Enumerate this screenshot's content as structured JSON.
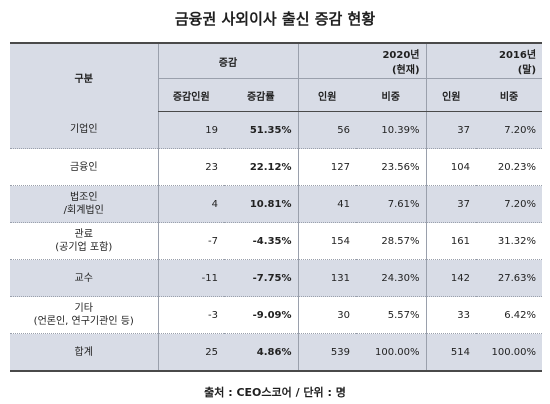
{
  "title": "금융권 사외이사 출신 증감 현황",
  "header": {
    "category": "구분",
    "change_group": "증감",
    "year2020_line1": "2020년",
    "year2020_line2": "(현재)",
    "year2016_line1": "2016년",
    "year2016_line2": "(말)",
    "change_count": "증감인원",
    "change_rate": "증감률",
    "count_2020": "인원",
    "share_2020": "비중",
    "count_2016": "인원",
    "share_2016": "비중"
  },
  "rows": [
    {
      "label1": "기업인",
      "label2": "",
      "change_count": "19",
      "change_rate": "51.35%",
      "count_2020": "56",
      "share_2020": "10.39%",
      "count_2016": "37",
      "share_2016": "7.20%"
    },
    {
      "label1": "금융인",
      "label2": "",
      "change_count": "23",
      "change_rate": "22.12%",
      "count_2020": "127",
      "share_2020": "23.56%",
      "count_2016": "104",
      "share_2016": "20.23%"
    },
    {
      "label1": "법조인",
      "label2": "/회계법인",
      "change_count": "4",
      "change_rate": "10.81%",
      "count_2020": "41",
      "share_2020": "7.61%",
      "count_2016": "37",
      "share_2016": "7.20%"
    },
    {
      "label1": "관료",
      "label2": "(공기업 포함)",
      "change_count": "-7",
      "change_rate": "-4.35%",
      "count_2020": "154",
      "share_2020": "28.57%",
      "count_2016": "161",
      "share_2016": "31.32%"
    },
    {
      "label1": "교수",
      "label2": "",
      "change_count": "-11",
      "change_rate": "-7.75%",
      "count_2020": "131",
      "share_2020": "24.30%",
      "count_2016": "142",
      "share_2016": "27.63%"
    },
    {
      "label1": "기타",
      "label2": "(언론인, 연구기관인 등)",
      "change_count": "-3",
      "change_rate": "-9.09%",
      "count_2020": "30",
      "share_2020": "5.57%",
      "count_2016": "33",
      "share_2016": "6.42%"
    },
    {
      "label1": "합계",
      "label2": "",
      "change_count": "25",
      "change_rate": "4.86%",
      "count_2020": "539",
      "share_2020": "100.00%",
      "count_2016": "514",
      "share_2016": "100.00%"
    }
  ],
  "source": "출처 : CEO스코어 / 단위 : 명"
}
